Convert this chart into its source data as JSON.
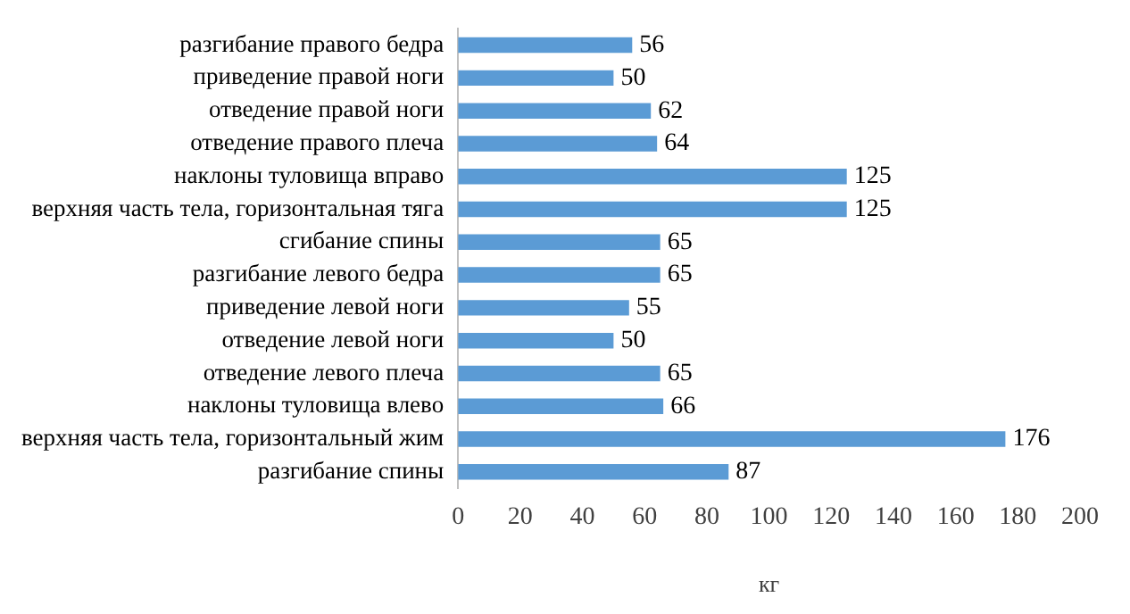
{
  "chart_data": {
    "type": "bar",
    "orientation": "horizontal",
    "xlabel": "кг",
    "categories": [
      "разгибание правого бедра",
      "приведение правой ноги",
      "отведение правой ноги",
      "отведение правого плеча",
      "наклоны туловища вправо",
      "верхняя часть тела, горизонтальная тяга",
      "сгибание спины",
      "разгибание левого бедра",
      "приведение левой ноги",
      "отведение левой ноги",
      "отведение левого плеча",
      "наклоны туловища влево",
      "верхняя часть тела, горизонтальный жим",
      "разгибание спины"
    ],
    "values": [
      56,
      50,
      62,
      64,
      125,
      125,
      65,
      65,
      55,
      50,
      65,
      66,
      176,
      87
    ],
    "color": "#5b9bd5",
    "xlim": [
      0,
      200
    ],
    "xticks": [
      0,
      20,
      40,
      60,
      80,
      100,
      120,
      140,
      160,
      180,
      200
    ],
    "grid": false,
    "data_labels": true,
    "legend": false
  }
}
